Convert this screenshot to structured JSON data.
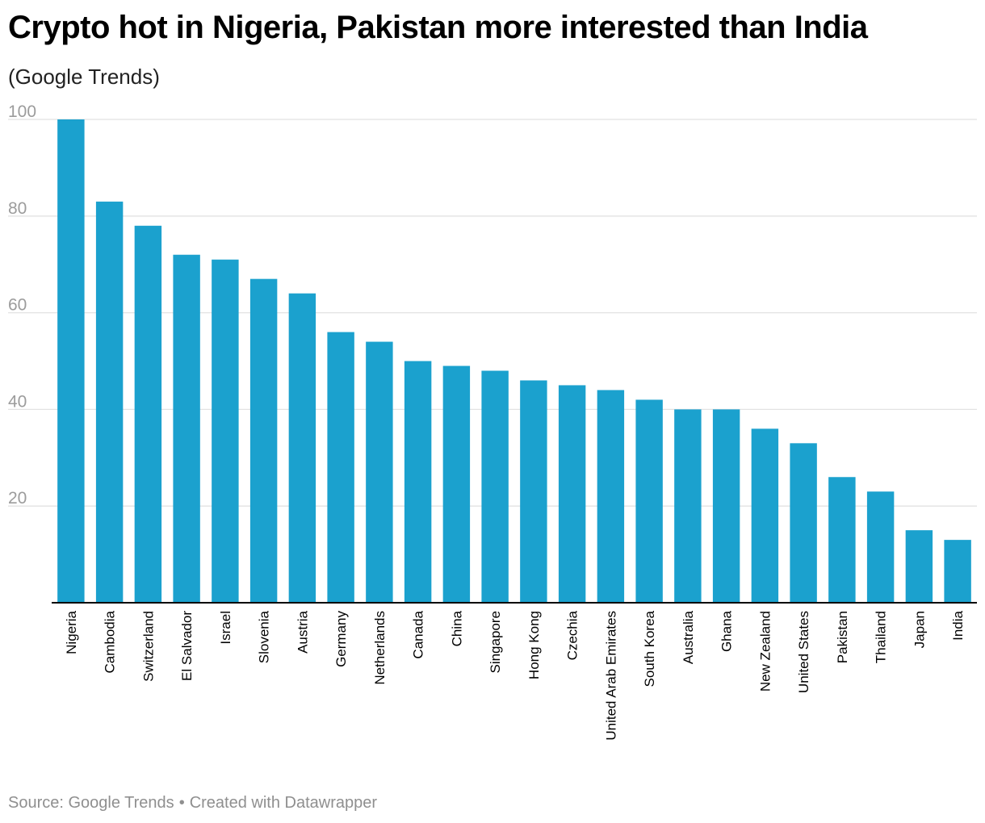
{
  "title": "Crypto hot in Nigeria, Pakistan more interested than India",
  "subtitle": "(Google Trends)",
  "footer": {
    "source": "Source: Google Trends",
    "separator": "•",
    "credit": "Created with Datawrapper"
  },
  "colors": {
    "bar": "#1ba1ce",
    "grid": "#e2e2e2",
    "axis": "#000000",
    "tick_text": "#9c9c9c",
    "footer_text": "#8f8f8f"
  },
  "chart_data": {
    "type": "bar",
    "title": "Crypto hot in Nigeria, Pakistan more interested than India",
    "subtitle": "(Google Trends)",
    "xlabel": "",
    "ylabel": "",
    "ylim": [
      0,
      100
    ],
    "yticks": [
      20,
      40,
      60,
      80,
      100
    ],
    "grid": true,
    "categories": [
      "Nigeria",
      "Cambodia",
      "Switzerland",
      "El Salvador",
      "Israel",
      "Slovenia",
      "Austria",
      "Germany",
      "Netherlands",
      "Canada",
      "China",
      "Singapore",
      "Hong Kong",
      "Czechia",
      "United Arab Emirates",
      "South Korea",
      "Australia",
      "Ghana",
      "New Zealand",
      "United States",
      "Pakistan",
      "Thailand",
      "Japan",
      "India"
    ],
    "values": [
      100,
      83,
      78,
      72,
      71,
      67,
      64,
      56,
      54,
      50,
      49,
      48,
      46,
      45,
      44,
      42,
      40,
      40,
      36,
      33,
      26,
      23,
      15,
      13
    ]
  }
}
